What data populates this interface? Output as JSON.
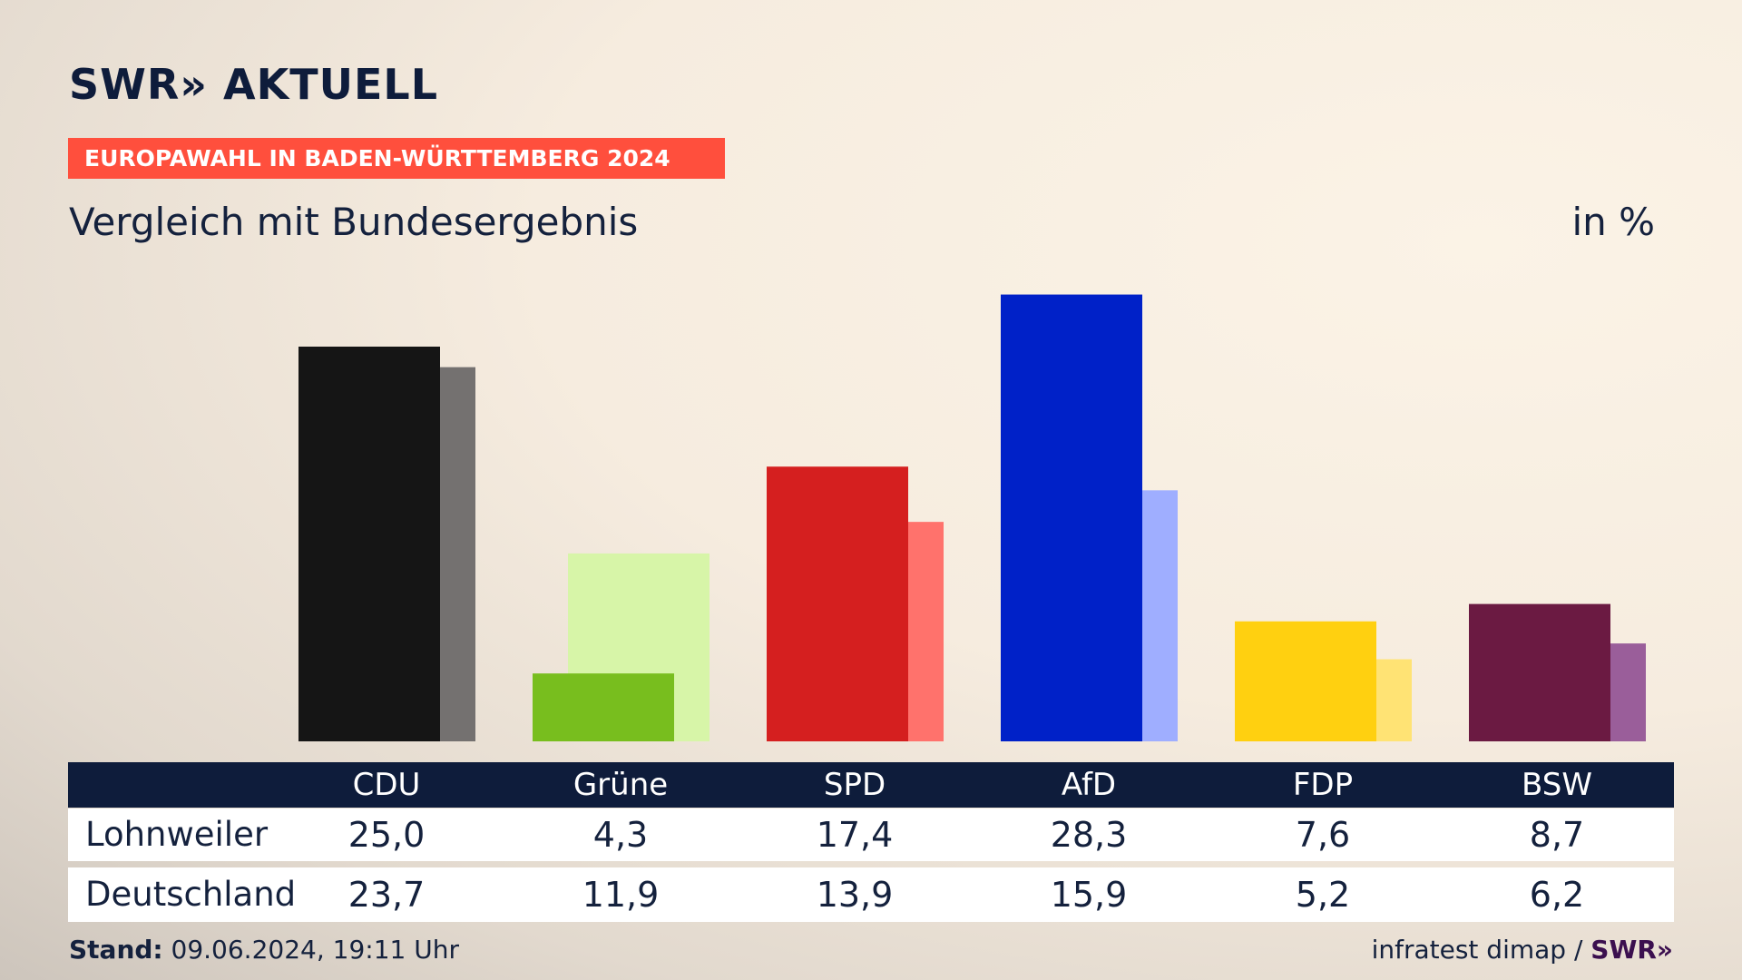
{
  "header": {
    "logo_text": "SWR» AKTUELL",
    "banner": "EUROPAWAHL IN BADEN-WÜRTTEMBERG 2024",
    "title": "Vergleich mit Bundesergebnis",
    "unit": "in %"
  },
  "chart_data": {
    "type": "bar",
    "categories": [
      "CDU",
      "Grüne",
      "SPD",
      "AfD",
      "FDP",
      "BSW"
    ],
    "series": [
      {
        "name": "Lohnweiler",
        "values": [
          25.0,
          4.3,
          17.4,
          28.3,
          7.6,
          8.7
        ]
      },
      {
        "name": "Deutschland",
        "values": [
          23.7,
          11.9,
          13.9,
          15.9,
          5.2,
          6.2
        ]
      }
    ],
    "colors_primary": [
      "#151515",
      "#78be1e",
      "#d51f1f",
      "#0021c8",
      "#ffd010",
      "#6b1a42"
    ],
    "colors_secondary": [
      "#747170",
      "#d7f5a8",
      "#ff726c",
      "#9faeff",
      "#ffe374",
      "#9a5e9a"
    ],
    "ylim": [
      0,
      30
    ],
    "legend": "table-below"
  },
  "table": {
    "rows": [
      {
        "label": "Lohnweiler",
        "values": [
          "25,0",
          "4,3",
          "17,4",
          "28,3",
          "7,6",
          "8,7"
        ]
      },
      {
        "label": "Deutschland",
        "values": [
          "23,7",
          "11,9",
          "13,9",
          "15,9",
          "5,2",
          "6,2"
        ]
      }
    ]
  },
  "footer": {
    "stand_label": "Stand:",
    "stand_value": " 09.06.2024, 19:11 Uhr",
    "source": "infratest dimap / ",
    "source_brand": "SWR»"
  }
}
